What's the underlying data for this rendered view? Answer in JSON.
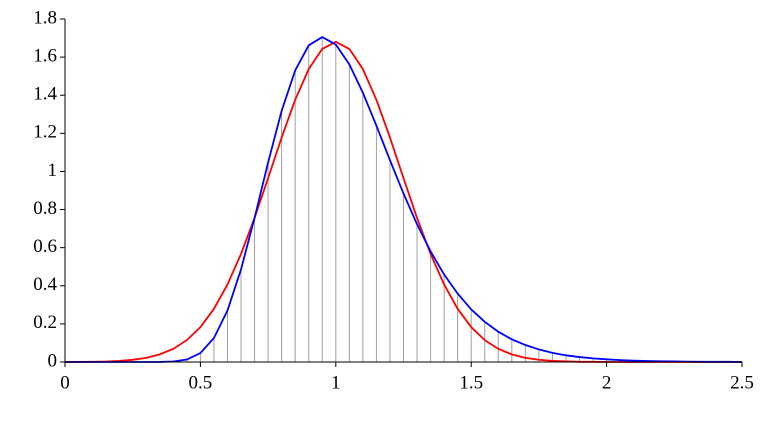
{
  "chart_data": {
    "type": "line",
    "x": [
      0,
      0.05,
      0.1,
      0.15,
      0.2,
      0.25,
      0.3,
      0.35,
      0.4,
      0.45,
      0.5,
      0.55,
      0.6,
      0.65,
      0.7,
      0.75,
      0.8,
      0.85,
      0.9,
      0.95,
      1,
      1.05,
      1.1,
      1.15,
      1.2,
      1.25,
      1.3,
      1.35,
      1.4,
      1.45,
      1.5,
      1.55,
      1.6,
      1.65,
      1.7,
      1.75,
      1.8,
      1.85,
      1.9,
      1.95,
      2,
      2.05,
      2.1,
      2.15,
      2.2,
      2.25,
      2.3,
      2.35,
      2.4,
      2.45,
      2.5
    ],
    "series": [
      {
        "style": "stems",
        "color": "#a0a0a0",
        "values": [
          0,
          0,
          0,
          0,
          0,
          0,
          0,
          0.0003,
          0.0025,
          0.013,
          0.047,
          0.126,
          0.27,
          0.486,
          0.756,
          1.047,
          1.318,
          1.53,
          1.662,
          1.705,
          1.666,
          1.562,
          1.413,
          1.24,
          1.059,
          0.884,
          0.723,
          0.581,
          0.459,
          0.359,
          0.276,
          0.211,
          0.159,
          0.119,
          0.089,
          0.066,
          0.048,
          0.035,
          0.026,
          0.019,
          0.014,
          0.01,
          0.007,
          0.005,
          0.004,
          0.003,
          0.002,
          0.001,
          0.001,
          0.001,
          0
        ]
      },
      {
        "style": "line",
        "color": "#ff0000",
        "values": [
          0.0002,
          0.0006,
          0.0013,
          0.0028,
          0.0058,
          0.0115,
          0.0218,
          0.04,
          0.069,
          0.115,
          0.183,
          0.279,
          0.407,
          0.567,
          0.756,
          0.965,
          1.178,
          1.376,
          1.537,
          1.643,
          1.68,
          1.643,
          1.537,
          1.376,
          1.178,
          0.965,
          0.756,
          0.567,
          0.407,
          0.279,
          0.183,
          0.115,
          0.069,
          0.04,
          0.022,
          0.012,
          0.006,
          0.003,
          0.001,
          0.001,
          0,
          0,
          0,
          0,
          0,
          0,
          0,
          0,
          0,
          0,
          0
        ]
      },
      {
        "style": "line",
        "color": "#0000ff",
        "values": [
          0,
          0,
          0,
          0,
          0,
          0,
          0,
          0.0003,
          0.0025,
          0.013,
          0.047,
          0.126,
          0.27,
          0.486,
          0.756,
          1.047,
          1.318,
          1.53,
          1.662,
          1.705,
          1.666,
          1.562,
          1.413,
          1.24,
          1.059,
          0.884,
          0.723,
          0.581,
          0.459,
          0.359,
          0.276,
          0.211,
          0.159,
          0.119,
          0.089,
          0.066,
          0.048,
          0.035,
          0.026,
          0.019,
          0.014,
          0.01,
          0.007,
          0.005,
          0.004,
          0.003,
          0.002,
          0.001,
          0.001,
          0.001,
          0
        ]
      }
    ],
    "xlim": [
      0,
      2.5
    ],
    "xticks": [
      0,
      0.5,
      1,
      1.5,
      2,
      2.5
    ],
    "ylim": [
      0,
      1.8
    ],
    "yticks": [
      0,
      0.2,
      0.4,
      0.6,
      0.8,
      1,
      1.2,
      1.4,
      1.6,
      1.8
    ],
    "grid": false
  }
}
